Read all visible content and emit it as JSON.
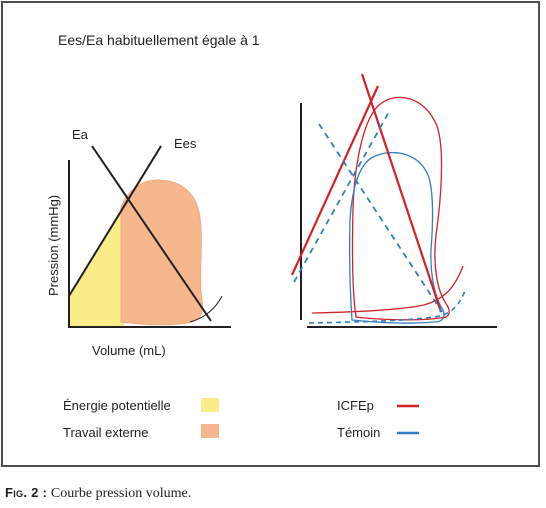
{
  "figure": {
    "heading": "Ees/Ea habituellement égale à 1",
    "left_panel": {
      "y_axis_label": "Pression (mmHg)",
      "x_axis_label": "Volume (mL)",
      "line_ea_label": "Ea",
      "line_ees_label": "Ees"
    },
    "legend_left": [
      {
        "label": "Énergie potentielle",
        "color": "#fbec8a"
      },
      {
        "label": "Travail externe",
        "color": "#f6b78f"
      }
    ],
    "legend_right": [
      {
        "label": "ICFEp",
        "color": "#d2232a"
      },
      {
        "label": "Témoin",
        "color": "#2f7fc1"
      }
    ]
  },
  "caption": {
    "label": "Fig. 2 :",
    "text": "Courbe pression volume."
  }
}
